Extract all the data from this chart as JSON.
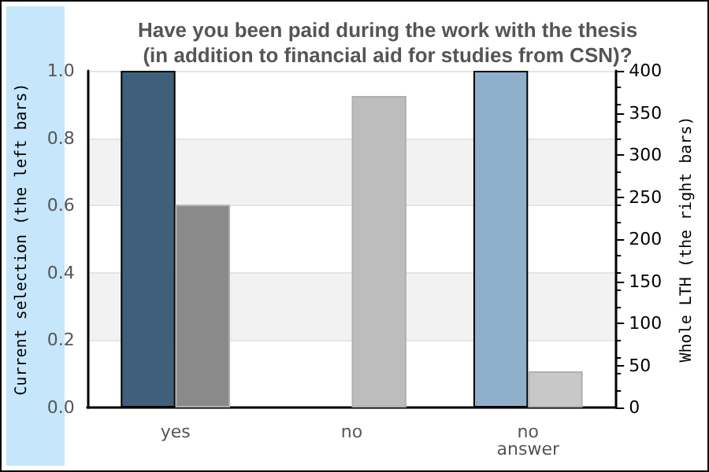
{
  "chart_data": {
    "type": "bar",
    "title": "Have you been paid during the work with the thesis\n(in addition to financial aid for studies from CSN)?",
    "ylabel": "Current selection (the left bars)",
    "y2label": "Whole LTH (the right bars)",
    "categories": [
      "yes",
      "no",
      "no\nanswer"
    ],
    "series": [
      {
        "colors": [
          "#3f5f7a",
          null,
          "#8fb0cc"
        ],
        "values": [
          1.0,
          null,
          1.0
        ]
      },
      {
        "colors": [
          "#8a8a8a",
          "#bdbdbd",
          "#c8c8c8"
        ],
        "values": [
          241,
          370,
          43
        ],
        "axis": "y2"
      }
    ],
    "ylim": [
      0,
      1
    ],
    "yticks": [
      {
        "value": 0,
        "label": "0.0"
      },
      {
        "value": 0.2,
        "label": "0.2"
      },
      {
        "value": 0.4,
        "label": "0.4"
      },
      {
        "value": 0.6,
        "label": "0.6"
      },
      {
        "value": 0.8,
        "label": "0.8"
      },
      {
        "value": 1,
        "label": "1.0"
      }
    ],
    "y2lim": [
      0,
      400
    ],
    "y2ticks": [
      0,
      50,
      100,
      150,
      200,
      250,
      300,
      350,
      400
    ],
    "grid": "y"
  }
}
